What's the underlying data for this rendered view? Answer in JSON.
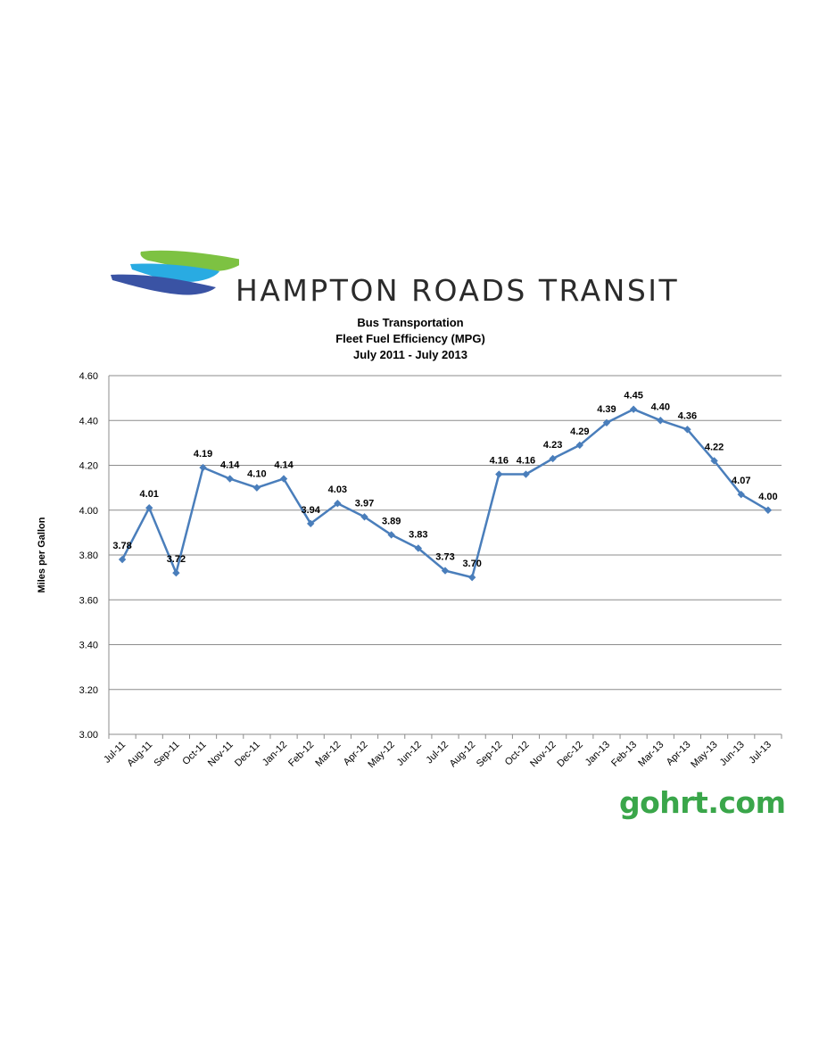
{
  "logo": {
    "text": "HAMPTON ROADS TRANSIT",
    "colors": [
      "#7dc242",
      "#29abe2",
      "#3a53a4"
    ]
  },
  "footer": {
    "text": "gohrt.com",
    "color": "#3aa64a"
  },
  "chart_data": {
    "type": "line",
    "title": [
      "Bus Transportation",
      "Fleet Fuel Efficiency (MPG)",
      "July 2011 - July 2013"
    ],
    "ylabel": "Miles per Gallon",
    "xlabel": "",
    "ylim": [
      3.0,
      4.6
    ],
    "yticks": [
      "3.00",
      "3.20",
      "3.40",
      "3.60",
      "3.80",
      "4.00",
      "4.20",
      "4.40",
      "4.60"
    ],
    "grid": true,
    "line_color": "#4a7ebb",
    "categories": [
      "Jul-11",
      "Aug-11",
      "Sep-11",
      "Oct-11",
      "Nov-11",
      "Dec-11",
      "Jan-12",
      "Feb-12",
      "Mar-12",
      "Apr-12",
      "May-12",
      "Jun-12",
      "Jul-12",
      "Aug-12",
      "Sep-12",
      "Oct-12",
      "Nov-12",
      "Dec-12",
      "Jan-13",
      "Feb-13",
      "Mar-13",
      "Apr-13",
      "May-13",
      "Jun-13",
      "Jul-13"
    ],
    "values": [
      3.78,
      4.01,
      3.72,
      4.19,
      4.14,
      4.1,
      4.14,
      3.94,
      4.03,
      3.97,
      3.89,
      3.83,
      3.73,
      3.7,
      4.16,
      4.16,
      4.23,
      4.29,
      4.39,
      4.45,
      4.4,
      4.36,
      4.22,
      4.07,
      4.0
    ],
    "labels": [
      "3.78",
      "4.01",
      "3.72",
      "4.19",
      "4.14",
      "4.10",
      "4.14",
      "3.94",
      "4.03",
      "3.97",
      "3.89",
      "3.83",
      "3.73",
      "3.70",
      "4.16",
      "4.16",
      "4.23",
      "4.29",
      "4.39",
      "4.45",
      "4.40",
      "4.36",
      "4.22",
      "4.07",
      "4.00"
    ]
  }
}
